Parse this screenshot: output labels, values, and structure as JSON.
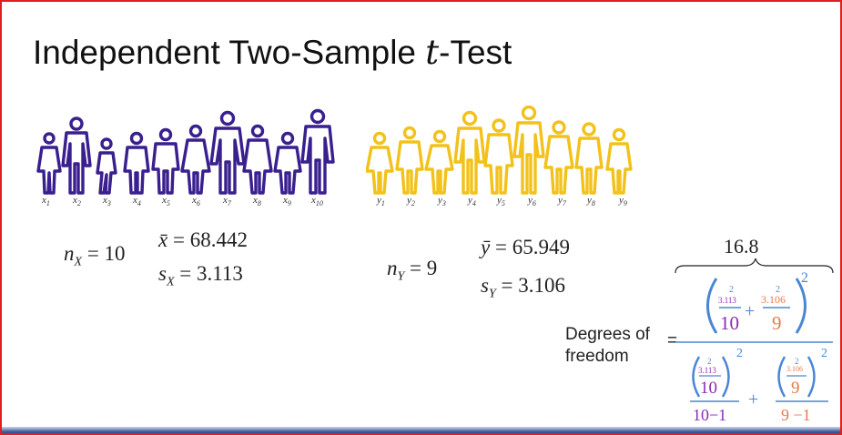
{
  "title": {
    "prefix": "Independent Two-Sample ",
    "var": "t",
    "suffix": "-Test"
  },
  "group_x": {
    "color": "#3a1f8f",
    "labels": [
      "x1",
      "x2",
      "x3",
      "x4",
      "x5",
      "x6",
      "x7",
      "x8",
      "x9",
      "x10"
    ],
    "n_label": "n",
    "n_sub": "X",
    "n_value": "= 10",
    "mean_label": "x̄",
    "mean_value": "= 68.442",
    "sd_label": "s",
    "sd_sub": "X",
    "sd_value": "= 3.113"
  },
  "group_y": {
    "color": "#f2c21b",
    "labels": [
      "y1",
      "y2",
      "y3",
      "y4",
      "y5",
      "y6",
      "y7",
      "y8",
      "y9"
    ],
    "n_label": "n",
    "n_sub": "Y",
    "n_value": "= 9",
    "mean_label": "ȳ",
    "mean_value": "= 65.949",
    "sd_label": "s",
    "sd_sub": "Y",
    "sd_value": "= 3.106"
  },
  "dof": {
    "label_line1": "Degrees of",
    "label_line2": "freedom",
    "equals": "=",
    "result": "16.8",
    "sx": "3.113",
    "sy": "3.106",
    "nx": "10",
    "ny": "9",
    "exp": "2",
    "nx_minus": "10−1",
    "ny_minus": "9 −1",
    "plus": "+",
    "color_blue": "#4a86d6",
    "color_purple": "#8a2bb5",
    "color_orange": "#e47a4a"
  }
}
